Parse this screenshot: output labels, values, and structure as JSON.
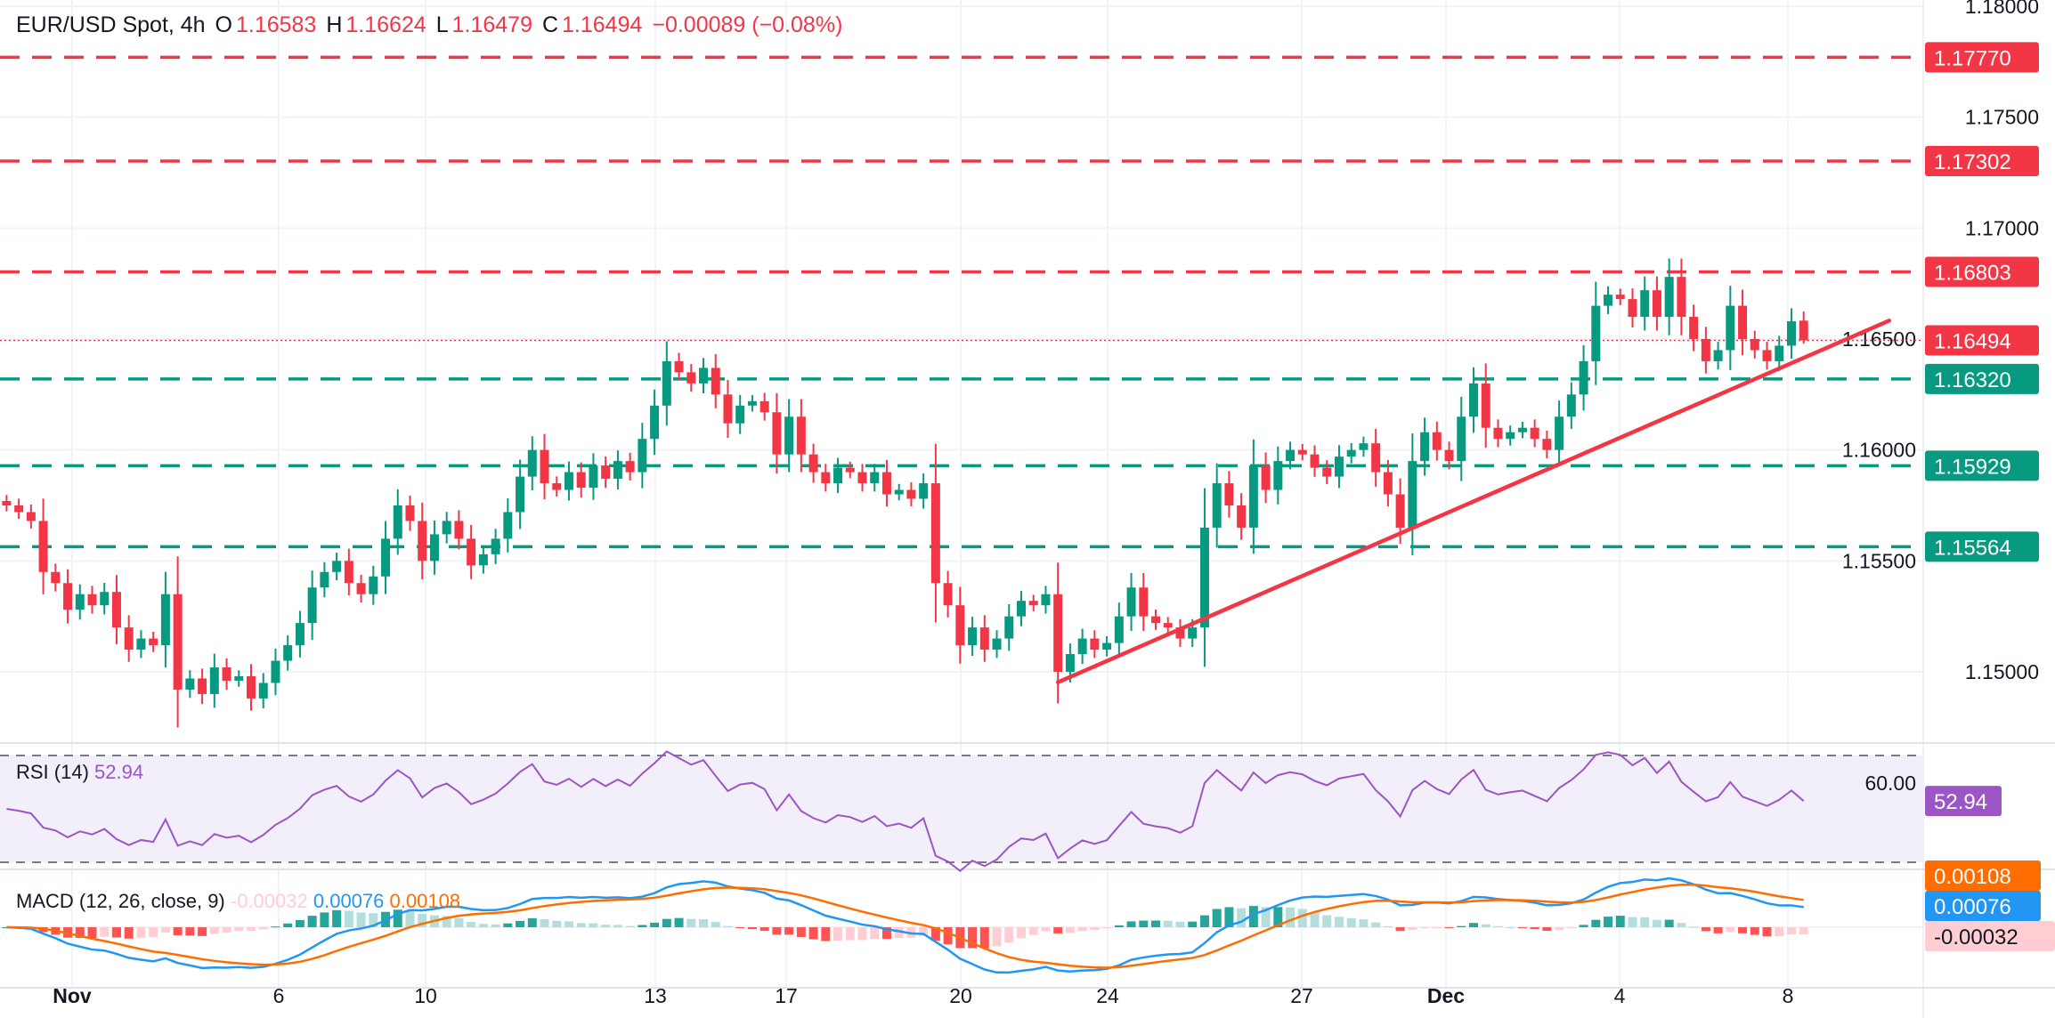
{
  "header": {
    "symbol": "EUR/USD Spot, 4h",
    "o_label": "O",
    "o": "1.16583",
    "h_label": "H",
    "h": "1.16624",
    "l_label": "L",
    "l": "1.16479",
    "c_label": "C",
    "c": "1.16494",
    "change": "−0.00089 (−0.08%)"
  },
  "colors": {
    "up": "#089981",
    "down": "#f23645",
    "rsi": "#9c55c4",
    "macd": "#2196f3",
    "signal": "#ff6d00",
    "resistance": "#f23645",
    "support": "#089981",
    "trendline": "#f23645"
  },
  "chart_data": {
    "type": "candlestick",
    "title": "EUR/USD Spot, 4h",
    "ylim": [
      1.1478,
      1.1803
    ],
    "y_ticks": [
      "1.18000",
      "1.17500",
      "1.17000",
      "1.16500",
      "1.16000",
      "1.15500",
      "1.15000"
    ],
    "x_ticks": [
      "Nov",
      "6",
      "10",
      "13",
      "17",
      "20",
      "24",
      "27",
      "Dec",
      "4",
      "8"
    ],
    "grid": true,
    "closes": [
      1.1575,
      1.1572,
      1.1568,
      1.1545,
      1.154,
      1.1528,
      1.1535,
      1.153,
      1.1536,
      1.152,
      1.151,
      1.1515,
      1.1512,
      1.1535,
      1.1492,
      1.1497,
      1.149,
      1.1502,
      1.1496,
      1.1498,
      1.1488,
      1.1495,
      1.1505,
      1.1512,
      1.1522,
      1.1538,
      1.1545,
      1.155,
      1.154,
      1.1535,
      1.1543,
      1.156,
      1.1575,
      1.1568,
      1.155,
      1.1562,
      1.1568,
      1.156,
      1.1548,
      1.1553,
      1.156,
      1.1572,
      1.1588,
      1.16,
      1.1585,
      1.1582,
      1.159,
      1.1583,
      1.1593,
      1.1587,
      1.1595,
      1.159,
      1.1605,
      1.162,
      1.164,
      1.1635,
      1.163,
      1.1637,
      1.1625,
      1.1612,
      1.162,
      1.1622,
      1.1617,
      1.1598,
      1.1615,
      1.1598,
      1.159,
      1.1585,
      1.1592,
      1.159,
      1.1585,
      1.159,
      1.158,
      1.1582,
      1.1578,
      1.1585,
      1.154,
      1.153,
      1.1512,
      1.152,
      1.151,
      1.1515,
      1.1525,
      1.1532,
      1.153,
      1.1535,
      1.15,
      1.1508,
      1.1515,
      1.151,
      1.1513,
      1.1525,
      1.1538,
      1.1525,
      1.1522,
      1.152,
      1.1515,
      1.152,
      1.1565,
      1.1585,
      1.1575,
      1.1565,
      1.1593,
      1.1582,
      1.1595,
      1.16,
      1.1598,
      1.1592,
      1.1588,
      1.1597,
      1.16,
      1.1603,
      1.159,
      1.158,
      1.1565,
      1.1595,
      1.1608,
      1.16,
      1.1595,
      1.1615,
      1.163,
      1.161,
      1.1605,
      1.1608,
      1.161,
      1.1605,
      1.16,
      1.1615,
      1.1625,
      1.164,
      1.1665,
      1.167,
      1.1668,
      1.166,
      1.1672,
      1.166,
      1.1678,
      1.166,
      1.165,
      1.164,
      1.1645,
      1.1665,
      1.165,
      1.1645,
      1.164,
      1.1647,
      1.1658,
      1.16494
    ],
    "last_candle": {
      "open": 1.16583,
      "high": 1.16624,
      "low": 1.16479,
      "close": 1.16494
    },
    "levels": [
      {
        "price": 1.1777,
        "label": "1.17770",
        "kind": "resistance"
      },
      {
        "price": 1.17302,
        "label": "1.17302",
        "kind": "resistance"
      },
      {
        "price": 1.16803,
        "label": "1.16803",
        "kind": "resistance"
      },
      {
        "price": 1.1632,
        "label": "1.16320",
        "kind": "support"
      },
      {
        "price": 1.15929,
        "label": "1.15929",
        "kind": "support"
      },
      {
        "price": 1.15564,
        "label": "1.15564",
        "kind": "support"
      }
    ],
    "current_price": {
      "price": 1.16494,
      "label": "1.16494"
    },
    "trendline": {
      "from": {
        "bar": 86,
        "price": 1.14953
      },
      "to": {
        "bar": 154,
        "price": 1.16583
      }
    },
    "rsi": {
      "label": "RSI (14)",
      "value": "52.94",
      "bands": [
        30,
        70
      ],
      "tick": "60.00"
    },
    "macd": {
      "label": "MACD (12, 26, close, 9)",
      "histogram": "-0.00032",
      "macd": "0.00076",
      "signal": "0.00108"
    }
  }
}
